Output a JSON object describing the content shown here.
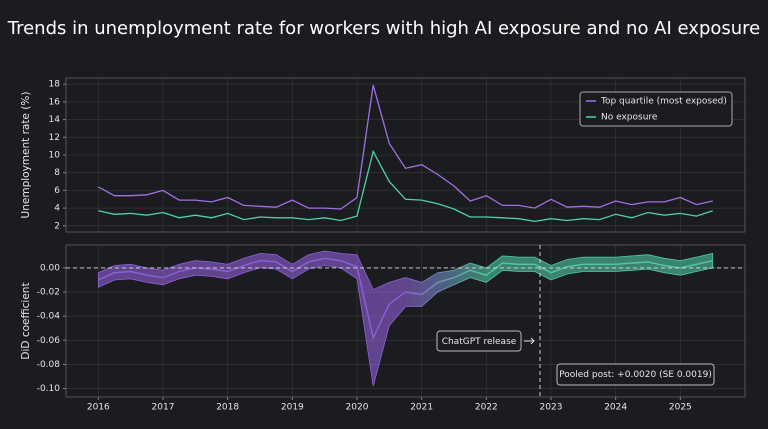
{
  "title": "Trends in unemployment rate for workers with high AI exposure and no AI exposure",
  "chart_data": [
    {
      "type": "line",
      "ylabel": "Unemployment rate (%)",
      "x": [
        2016,
        2016.25,
        2016.5,
        2016.75,
        2017,
        2017.25,
        2017.5,
        2017.75,
        2018,
        2018.25,
        2018.5,
        2018.75,
        2019,
        2019.25,
        2019.5,
        2019.75,
        2020,
        2020.25,
        2020.5,
        2020.75,
        2021,
        2021.25,
        2021.5,
        2021.75,
        2022,
        2022.25,
        2022.5,
        2022.75,
        2023,
        2023.25,
        2023.5,
        2023.75,
        2024,
        2024.25,
        2024.5,
        2024.75,
        2025,
        2025.25,
        2025.5
      ],
      "series": [
        {
          "name": "Top quartile (most exposed)",
          "color": "#a26fe6",
          "values": [
            6.4,
            5.4,
            5.4,
            5.5,
            6.0,
            4.9,
            4.9,
            4.7,
            5.2,
            4.3,
            4.2,
            4.1,
            4.9,
            4.0,
            4.0,
            3.9,
            5.2,
            17.9,
            11.3,
            8.5,
            8.9,
            7.8,
            6.5,
            4.8,
            5.4,
            4.3,
            4.3,
            4.0,
            5.0,
            4.1,
            4.2,
            4.1,
            4.8,
            4.4,
            4.7,
            4.7,
            5.2,
            4.4,
            4.8
          ]
        },
        {
          "name": "No exposure",
          "color": "#4fd1a5",
          "values": [
            3.7,
            3.3,
            3.4,
            3.2,
            3.5,
            2.9,
            3.2,
            2.9,
            3.4,
            2.7,
            3.0,
            2.9,
            2.9,
            2.7,
            2.9,
            2.6,
            3.1,
            10.4,
            7.0,
            5.0,
            4.9,
            4.5,
            3.9,
            3.0,
            3.0,
            2.9,
            2.8,
            2.5,
            2.8,
            2.6,
            2.8,
            2.7,
            3.3,
            2.9,
            3.5,
            3.2,
            3.4,
            3.1,
            3.7
          ]
        }
      ],
      "xlim": [
        2015.5,
        2026.0
      ],
      "xticks": [
        2016,
        2017,
        2018,
        2019,
        2020,
        2021,
        2022,
        2023,
        2024,
        2025
      ],
      "ylim": [
        1.3,
        18.7
      ],
      "yticks": [
        2,
        4,
        6,
        8,
        10,
        12,
        14,
        16,
        18
      ],
      "grid": true,
      "legend": "upper right"
    },
    {
      "type": "band",
      "ylabel": "DiD coefficient",
      "x": [
        2016,
        2016.25,
        2016.5,
        2016.75,
        2017,
        2017.25,
        2017.5,
        2017.75,
        2018,
        2018.25,
        2018.5,
        2018.75,
        2019,
        2019.25,
        2019.5,
        2019.75,
        2020,
        2020.25,
        2020.5,
        2020.75,
        2021,
        2021.25,
        2021.5,
        2021.75,
        2022,
        2022.25,
        2022.5,
        2022.75,
        2023,
        2023.25,
        2023.5,
        2023.75,
        2024,
        2024.25,
        2024.5,
        2024.75,
        2025,
        2025.25,
        2025.5
      ],
      "series": [
        {
          "name": "estimate",
          "values": [
            -0.01,
            -0.004,
            -0.003,
            -0.006,
            -0.008,
            -0.003,
            0.0,
            -0.001,
            -0.003,
            0.002,
            0.006,
            0.005,
            -0.003,
            0.005,
            0.008,
            0.006,
            0.001,
            -0.058,
            -0.03,
            -0.02,
            -0.022,
            -0.012,
            -0.008,
            -0.002,
            -0.006,
            0.004,
            0.003,
            0.003,
            -0.004,
            0.001,
            0.003,
            0.003,
            0.003,
            0.004,
            0.005,
            0.002,
            0.0,
            0.003,
            0.006
          ]
        },
        {
          "name": "lower",
          "values": [
            -0.016,
            -0.01,
            -0.009,
            -0.012,
            -0.014,
            -0.009,
            -0.006,
            -0.007,
            -0.009,
            -0.004,
            0.0,
            -0.001,
            -0.009,
            -0.001,
            0.002,
            0.0,
            -0.009,
            -0.098,
            -0.048,
            -0.032,
            -0.032,
            -0.02,
            -0.014,
            -0.008,
            -0.012,
            -0.002,
            -0.003,
            -0.003,
            -0.01,
            -0.005,
            -0.003,
            -0.003,
            -0.003,
            -0.002,
            -0.001,
            -0.004,
            -0.006,
            -0.003,
            0.0
          ]
        },
        {
          "name": "upper",
          "values": [
            -0.004,
            0.002,
            0.003,
            0.0,
            -0.002,
            0.003,
            0.006,
            0.005,
            0.003,
            0.008,
            0.012,
            0.011,
            0.003,
            0.011,
            0.014,
            0.012,
            0.011,
            -0.018,
            -0.012,
            -0.008,
            -0.012,
            -0.004,
            -0.002,
            0.004,
            0.0,
            0.01,
            0.009,
            0.009,
            0.002,
            0.007,
            0.009,
            0.009,
            0.009,
            0.01,
            0.011,
            0.008,
            0.006,
            0.009,
            0.012
          ]
        }
      ],
      "pre_color": "#8e5fd8",
      "post_color": "#4fc9a3",
      "xlim": [
        2015.5,
        2026.0
      ],
      "xticks": [
        2016,
        2017,
        2018,
        2019,
        2020,
        2021,
        2022,
        2023,
        2024,
        2025
      ],
      "ylim": [
        -0.107,
        0.019
      ],
      "yticks": [
        {
          "value": 0,
          "label": "0.00"
        },
        {
          "value": -0.02,
          "label": "-0.02"
        },
        {
          "value": -0.04,
          "label": "-0.04"
        },
        {
          "value": -0.06,
          "label": "-0.06"
        },
        {
          "value": -0.08,
          "label": "-0.08"
        },
        {
          "value": -0.1,
          "label": "-0.10"
        }
      ],
      "grid": true,
      "hline": 0,
      "release": {
        "x": 2022.83,
        "label": "ChatGPT release"
      },
      "note": "Pooled post: +0.0020 (SE 0.0019)"
    }
  ]
}
